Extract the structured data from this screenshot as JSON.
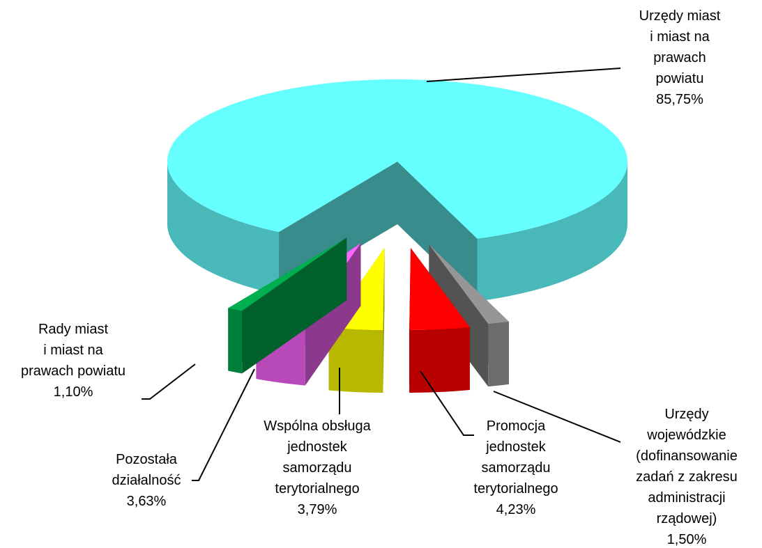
{
  "chart_data": {
    "type": "pie3d",
    "categories": [
      "Urzędy miast\ni miast na\nprawach powiatu",
      "Urzędy\nwojewódzkie\n(dofinansowanie\nzadań z zakresu\nadministracji\nrządowej)",
      "Promocja\njednostek\nsamorządu\nterytorialnego",
      "Wspólna obsługa\njednostek\nsamorządu\nterytorialnego",
      "Pozostała\ndziałalność",
      "Rady miast\ni miast na\nprawach powiatu"
    ],
    "values": [
      85.75,
      1.5,
      4.23,
      3.79,
      3.63,
      1.1
    ],
    "value_labels": [
      "85,75%",
      "1,50%",
      "4,23%",
      "3,79%",
      "3,63%",
      "1,10%"
    ],
    "colors": [
      "#66ffff",
      "#969696",
      "#ff0000",
      "#ffff00",
      "#ff66ff",
      "#00b050"
    ]
  }
}
